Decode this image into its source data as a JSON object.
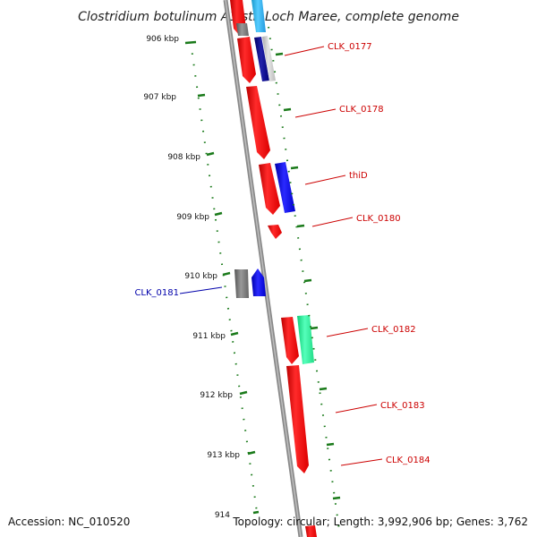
{
  "title": "Clostridium botulinum A3 str. Loch Maree, complete genome",
  "footer": {
    "accession": "Accession: NC_010520",
    "summary": "Topology: circular; Length: 3,992,906 bp; Genes: 3,762"
  },
  "ticks": [
    {
      "label": "906 kbp",
      "kbp": 906
    },
    {
      "label": "907 kbp",
      "kbp": 907
    },
    {
      "label": "908 kbp",
      "kbp": 908
    },
    {
      "label": "909 kbp",
      "kbp": 909
    },
    {
      "label": "910 kbp",
      "kbp": 910
    },
    {
      "label": "911 kbp",
      "kbp": 911
    },
    {
      "label": "912 kbp",
      "kbp": 912
    },
    {
      "label": "913 kbp",
      "kbp": 913
    },
    {
      "label": "914",
      "kbp": 914
    }
  ],
  "genes": [
    {
      "label": "CLK_0177",
      "side": "right",
      "color": "#cc0000"
    },
    {
      "label": "CLK_0178",
      "side": "right",
      "color": "#cc0000"
    },
    {
      "label": "thiD",
      "side": "right",
      "color": "#cc0000"
    },
    {
      "label": "CLK_0180",
      "side": "right",
      "color": "#cc0000"
    },
    {
      "label": "CLK_0181",
      "side": "left",
      "color": "#0000aa"
    },
    {
      "label": "CLK_0182",
      "side": "right",
      "color": "#cc0000"
    },
    {
      "label": "CLK_0183",
      "side": "right",
      "color": "#cc0000"
    },
    {
      "label": "CLK_0184",
      "side": "right",
      "color": "#cc0000"
    }
  ],
  "colors": {
    "backbone": "#8a8a8a",
    "tick": "#1a7a1a",
    "forward_gene": "#ff0000",
    "reverse_gene": "#0000ee",
    "pseudo": "#777777",
    "cyan": "#33bbee",
    "teal": "#22ee99",
    "navy": "#000080",
    "light_gray": "#c8c8c8"
  }
}
